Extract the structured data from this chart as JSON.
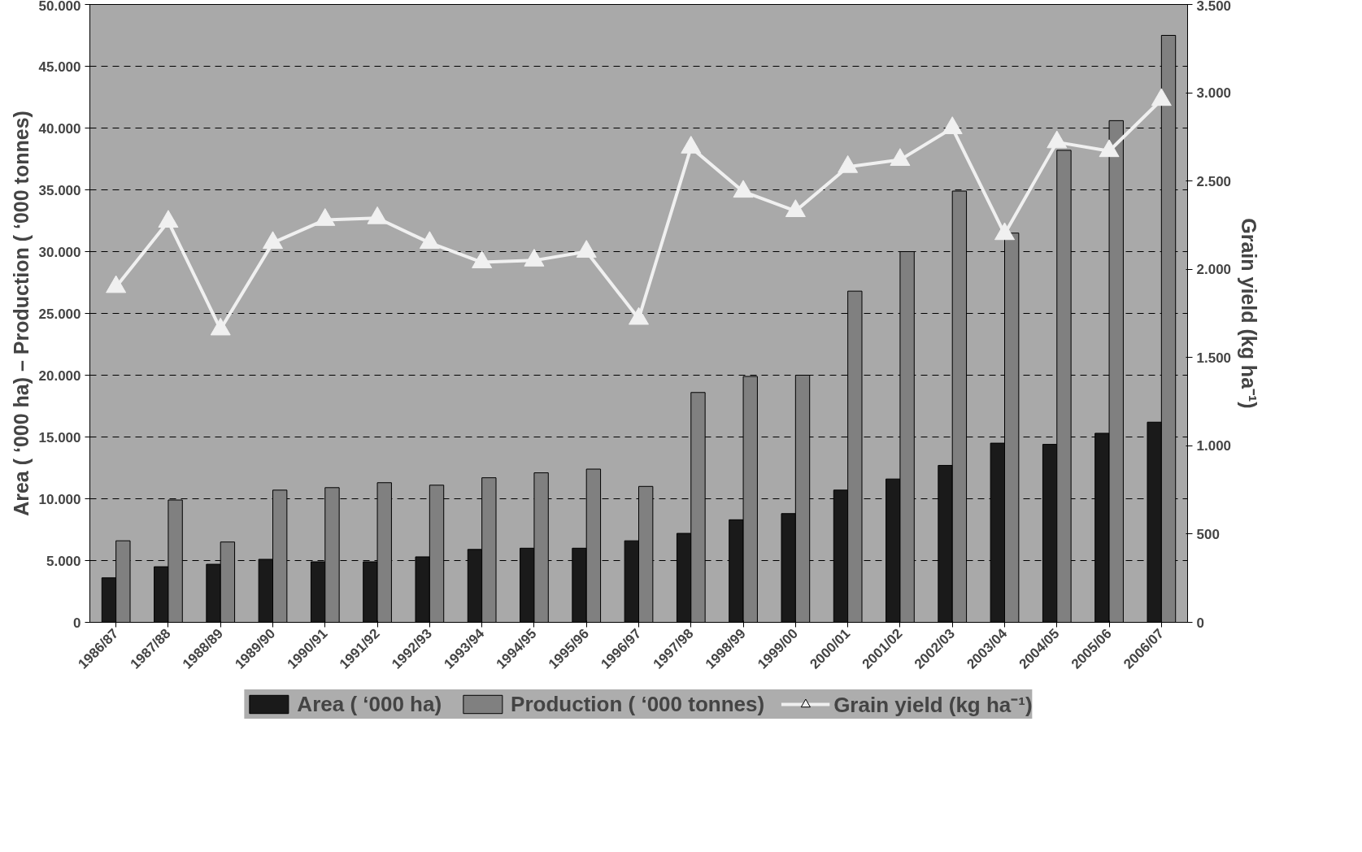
{
  "chart_data": {
    "type": "bar",
    "ylabel": "Area ( ‘000 ha) – Production ( ‘000 tonnes)",
    "y2label": "Grain yield (kg ha⁻¹)",
    "categories": [
      "1986/87",
      "1987/88",
      "1988/89",
      "1989/90",
      "1990/91",
      "1991/92",
      "1992/93",
      "1993/94",
      "1994/95",
      "1995/96",
      "1996/97",
      "1997/98",
      "1998/99",
      "1999/00",
      "2000/01",
      "2001/02",
      "2002/03",
      "2003/04",
      "2004/05",
      "2005/06",
      "2006/07"
    ],
    "series": [
      {
        "name": "Area ( ‘000 ha)",
        "color": "#1a1a1a",
        "values": [
          3600,
          4500,
          4700,
          5100,
          4900,
          4900,
          5300,
          5900,
          6000,
          6000,
          6600,
          7200,
          8300,
          8800,
          10700,
          11600,
          12700,
          14500,
          14400,
          15300,
          16200
        ]
      },
      {
        "name": "Production ( ‘000 tonnes)",
        "color": "#808080",
        "values": [
          6600,
          9900,
          6500,
          10700,
          10900,
          11300,
          11100,
          11700,
          12100,
          12400,
          11000,
          18600,
          19900,
          20000,
          26800,
          30000,
          34900,
          31500,
          38200,
          40600,
          47500
        ]
      },
      {
        "name": "Grain yield (kg ha⁻¹)",
        "type": "line",
        "axis": "y2",
        "color": "#f0f0f0",
        "marker": "triangle",
        "values": [
          1900,
          2270,
          1660,
          2150,
          2280,
          2290,
          2150,
          2040,
          2050,
          2100,
          1720,
          2690,
          2440,
          2330,
          2580,
          2620,
          2800,
          2200,
          2720,
          2670,
          2960
        ]
      }
    ],
    "ylim": [
      0,
      50000
    ],
    "yticks": [
      {
        "value": 0,
        "label": "0"
      },
      {
        "value": 5000,
        "label": "5.000"
      },
      {
        "value": 10000,
        "label": "10.000"
      },
      {
        "value": 15000,
        "label": "15.000"
      },
      {
        "value": 20000,
        "label": "20.000"
      },
      {
        "value": 25000,
        "label": "25.000"
      },
      {
        "value": 30000,
        "label": "30.000"
      },
      {
        "value": 35000,
        "label": "35.000"
      },
      {
        "value": 40000,
        "label": "40.000"
      },
      {
        "value": 45000,
        "label": "45.000"
      },
      {
        "value": 50000,
        "label": "50.000"
      }
    ],
    "y2lim": [
      0,
      3500
    ],
    "y2ticks": [
      0,
      500,
      {
        "value": 1000,
        "label": "1.000"
      },
      {
        "value": 1500,
        "label": "1.500"
      },
      {
        "value": 2000,
        "label": "2.000"
      },
      {
        "value": 2500,
        "label": "2.500"
      },
      {
        "value": 3000,
        "label": "3.000"
      },
      {
        "value": 3500,
        "label": "3.500"
      }
    ],
    "grid": "y",
    "legend": "bottom"
  }
}
